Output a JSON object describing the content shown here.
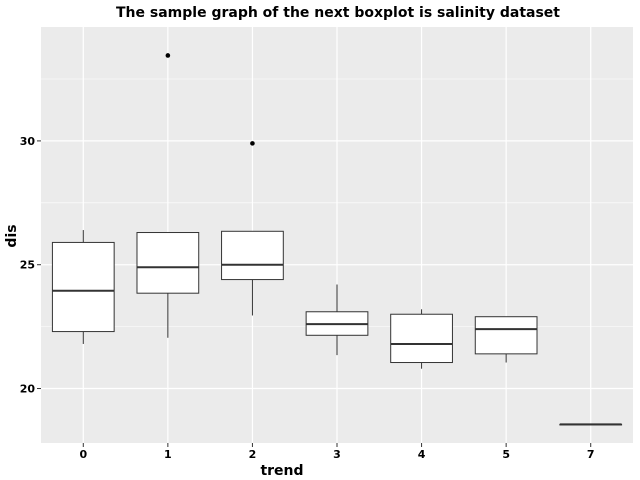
{
  "chart_data": {
    "type": "boxplot",
    "title": "The sample graph of the next boxplot is salinity dataset",
    "xlabel": "trend",
    "ylabel": "dis",
    "categories": [
      "0",
      "1",
      "2",
      "3",
      "4",
      "5",
      "7"
    ],
    "yticks": [
      20,
      25,
      30
    ],
    "ylim": [
      17.8,
      34.6
    ],
    "grid": true,
    "colors": {
      "panel": "#ebebeb",
      "grid": "#ffffff",
      "box_fill": "#ffffff",
      "box_stroke": "#333333"
    },
    "boxes": [
      {
        "category": "0",
        "min": 21.8,
        "q1": 22.3,
        "median": 23.95,
        "q3": 25.9,
        "max": 26.4,
        "outliers": []
      },
      {
        "category": "1",
        "min": 22.05,
        "q1": 23.85,
        "median": 24.9,
        "q3": 26.3,
        "max": 26.3,
        "outliers": [
          33.45
        ]
      },
      {
        "category": "2",
        "min": 22.95,
        "q1": 24.4,
        "median": 25.0,
        "q3": 26.35,
        "max": 26.35,
        "outliers": [
          29.9
        ]
      },
      {
        "category": "3",
        "min": 21.35,
        "q1": 22.15,
        "median": 22.6,
        "q3": 23.1,
        "max": 24.2,
        "outliers": []
      },
      {
        "category": "4",
        "min": 20.8,
        "q1": 21.05,
        "median": 21.8,
        "q3": 23.0,
        "max": 23.2,
        "outliers": []
      },
      {
        "category": "5",
        "min": 21.05,
        "q1": 21.4,
        "median": 22.4,
        "q3": 22.9,
        "max": 22.9,
        "outliers": []
      },
      {
        "category": "7",
        "min": 18.55,
        "q1": 18.55,
        "median": 18.55,
        "q3": 18.55,
        "max": 18.55,
        "outliers": []
      }
    ]
  }
}
